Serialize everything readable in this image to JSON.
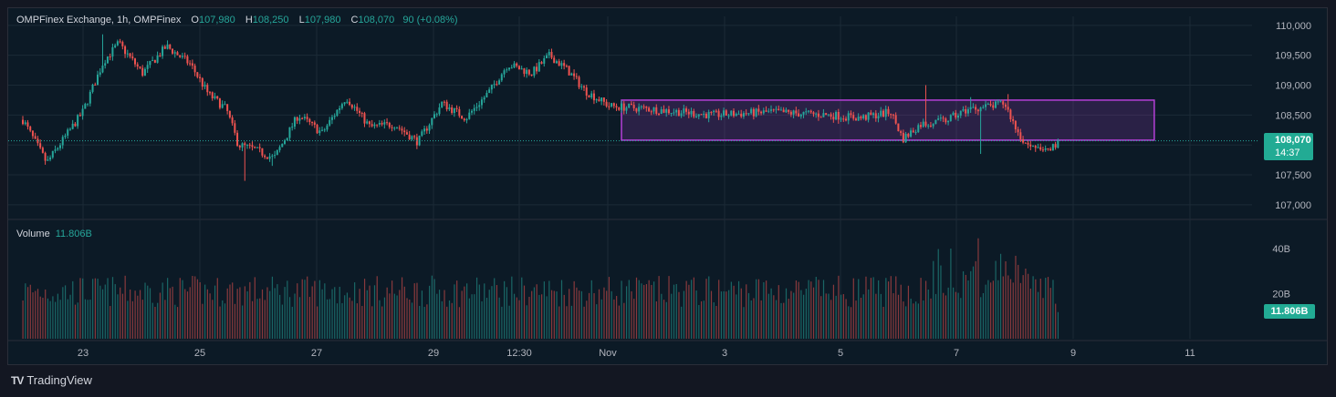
{
  "legend": {
    "symbol": "OMPFinex Exchange, 1h, OMPFinex",
    "open_label": "O",
    "open": "107,980",
    "high_label": "H",
    "high": "108,250",
    "low_label": "L",
    "low": "107,980",
    "close_label": "C",
    "close": "108,070",
    "change": "90 (+0.08%)"
  },
  "volume_legend": {
    "label": "Volume",
    "value": "11.806B"
  },
  "price_tag": {
    "price": "108,070",
    "countdown": "14:37"
  },
  "volume_tag": "11.806B",
  "brand": {
    "logo": "TV",
    "name": "TradingView"
  },
  "colors": {
    "up": "#26a69a",
    "down": "#ef5350",
    "background": "#0c1a26",
    "grid": "#1b2a36",
    "box": "#b540d8",
    "last_price": "#26a69a"
  },
  "chart_data": {
    "type": "candlestick",
    "price_axis": {
      "ticks": [
        "110,000",
        "109,500",
        "109,000",
        "108,500",
        "108,000",
        "107,500",
        "107,000"
      ],
      "range": [
        106800,
        110150
      ]
    },
    "volume_axis": {
      "ticks": [
        "40B",
        "20B"
      ],
      "range": [
        0,
        46
      ]
    },
    "time_axis": {
      "ticks": [
        "23",
        "25",
        "27",
        "29",
        "12:30",
        "Nov",
        "3",
        "5",
        "7",
        "9",
        "11"
      ]
    },
    "last_price": 108070,
    "series": [
      {
        "name": "Price",
        "interval": "1h"
      },
      {
        "name": "Volume",
        "last": "11.806B"
      }
    ],
    "anchors": [
      {
        "d": 0,
        "p": 108420
      },
      {
        "d": 0.4,
        "p": 107700
      },
      {
        "d": 1.0,
        "p": 108550
      },
      {
        "d": 1.35,
        "p": 109400
      },
      {
        "d": 1.6,
        "p": 109700
      },
      {
        "d": 2.0,
        "p": 109200
      },
      {
        "d": 2.4,
        "p": 109650
      },
      {
        "d": 2.8,
        "p": 109350
      },
      {
        "d": 3.1,
        "p": 108850
      },
      {
        "d": 3.4,
        "p": 108600
      },
      {
        "d": 3.6,
        "p": 108000
      },
      {
        "d": 3.8,
        "p": 107950
      },
      {
        "d": 4.2,
        "p": 107780
      },
      {
        "d": 4.6,
        "p": 108500
      },
      {
        "d": 5.0,
        "p": 108200
      },
      {
        "d": 5.4,
        "p": 108800
      },
      {
        "d": 5.8,
        "p": 108300
      },
      {
        "d": 6.2,
        "p": 108350
      },
      {
        "d": 6.6,
        "p": 108050
      },
      {
        "d": 7.0,
        "p": 108700
      },
      {
        "d": 7.4,
        "p": 108450
      },
      {
        "d": 7.8,
        "p": 108900
      },
      {
        "d": 8.1,
        "p": 109350
      },
      {
        "d": 8.5,
        "p": 109200
      },
      {
        "d": 8.8,
        "p": 109500
      },
      {
        "d": 9.1,
        "p": 109250
      },
      {
        "d": 9.4,
        "p": 108900
      },
      {
        "d": 9.8,
        "p": 108650
      },
      {
        "d": 10.5,
        "p": 108600
      },
      {
        "d": 11.5,
        "p": 108500
      },
      {
        "d": 12.5,
        "p": 108550
      },
      {
        "d": 13.5,
        "p": 108500
      },
      {
        "d": 14.0,
        "p": 108450
      },
      {
        "d": 14.5,
        "p": 108550
      },
      {
        "d": 14.7,
        "p": 108100
      },
      {
        "d": 15.0,
        "p": 108350
      },
      {
        "d": 15.4,
        "p": 108400
      },
      {
        "d": 15.8,
        "p": 108600
      },
      {
        "d": 16.2,
        "p": 108650
      },
      {
        "d": 16.4,
        "p": 108700
      },
      {
        "d": 16.6,
        "p": 108250
      },
      {
        "d": 16.8,
        "p": 107950
      },
      {
        "d": 17.0,
        "p": 107900
      },
      {
        "d": 17.2,
        "p": 107950
      },
      {
        "d": 17.3,
        "p": 108100
      }
    ],
    "spikes": [
      {
        "d": 3.7,
        "low": 107400
      },
      {
        "d": 4.15,
        "low": 107650
      },
      {
        "d": 15.1,
        "high": 109000
      },
      {
        "d": 16.0,
        "low": 107850
      },
      {
        "d": 15.85,
        "high": 108800
      },
      {
        "d": 16.45,
        "high": 108850
      },
      {
        "d": 1.35,
        "high": 109850
      }
    ],
    "range_box": {
      "d_start": 10.0,
      "d_end": 18.9,
      "top": 108750,
      "bottom": 108080
    }
  }
}
